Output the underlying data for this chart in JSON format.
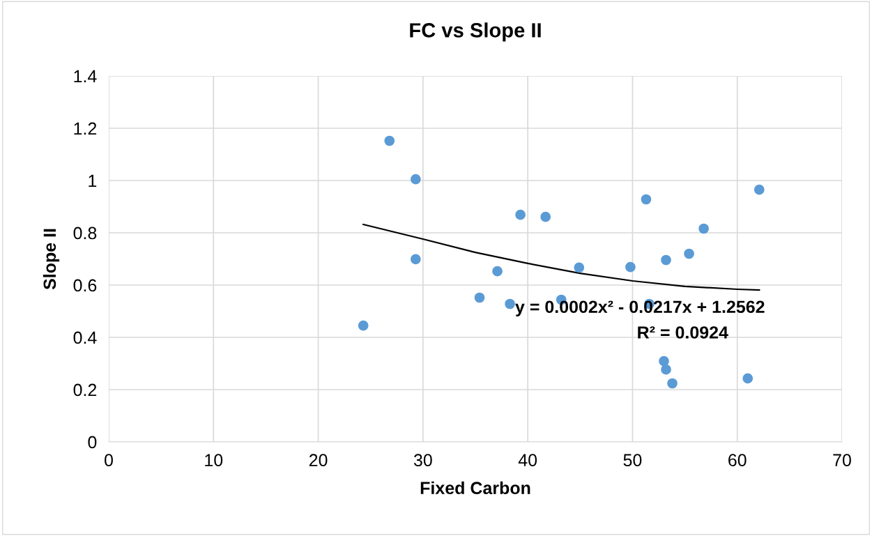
{
  "chart_data": {
    "type": "scatter",
    "title": "FC vs Slope II",
    "xlabel": "Fixed Carbon",
    "ylabel": "Slope II",
    "xlim": [
      0,
      70
    ],
    "xticks": [
      0,
      10,
      20,
      30,
      40,
      50,
      60,
      70
    ],
    "ylim": [
      0,
      1.4
    ],
    "yticks": [
      0,
      {
        "value": 0.2,
        "label": "0.2"
      },
      {
        "value": 0.4,
        "label": "0.4"
      },
      {
        "value": 0.6,
        "label": "0.6"
      },
      {
        "value": 0.8,
        "label": "0.8"
      },
      1,
      {
        "value": 1.2,
        "label": "1.2"
      },
      {
        "value": 1.4,
        "label": "1.4"
      }
    ],
    "grid": true,
    "legend": false,
    "marker": "circle",
    "series": [
      {
        "color": "#5b9bd5",
        "x": [
          24.3,
          26.8,
          29.3,
          29.3,
          35.4,
          37.1,
          38.3,
          39.3,
          41.7,
          43.2,
          44.9,
          49.8,
          51.3,
          51.6,
          53.2,
          53.0,
          53.2,
          53.8,
          55.4,
          56.8,
          61.0,
          62.1
        ],
        "values": [
          0.445,
          1.152,
          1.005,
          0.699,
          0.552,
          0.653,
          0.528,
          0.869,
          0.861,
          0.544,
          0.667,
          0.669,
          0.928,
          0.528,
          0.696,
          0.309,
          0.277,
          0.224,
          0.72,
          0.816,
          0.243,
          0.965
        ]
      },
      {
        "type": "line",
        "color": "#000000",
        "marker": "none",
        "x": [
          24.3,
          30,
          35,
          40,
          45,
          50,
          55,
          60,
          62.1
        ],
        "values": [
          0.832,
          0.776,
          0.725,
          0.683,
          0.645,
          0.616,
          0.595,
          0.584,
          0.581
        ]
      }
    ],
    "annotations": [
      "y = 0.0002x² - 0.0217x + 1.2562",
      "R² = 0.0924"
    ]
  }
}
